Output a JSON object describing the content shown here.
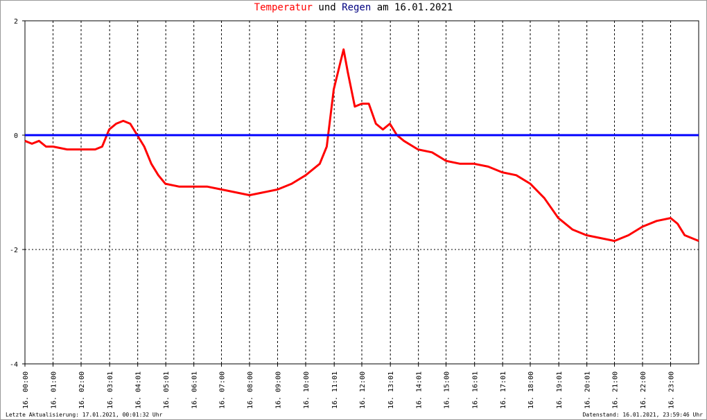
{
  "chart_data": {
    "type": "line",
    "title": [
      {
        "text": "Temperatur",
        "color": "#ff0000"
      },
      {
        "text": "und",
        "color": "#000000"
      },
      {
        "text": "Regen",
        "color": "#000080"
      },
      {
        "text": "am 16.01.2021",
        "color": "#000000"
      }
    ],
    "xlim": [
      0,
      24
    ],
    "xticks": [
      {
        "value": 0,
        "label": "16. 00:00"
      },
      {
        "value": 1,
        "label": "16. 01:00"
      },
      {
        "value": 2,
        "label": "16. 02:00"
      },
      {
        "value": 3.0167,
        "label": "16. 03:01"
      },
      {
        "value": 4.0167,
        "label": "16. 04:01"
      },
      {
        "value": 5.0167,
        "label": "16. 05:01"
      },
      {
        "value": 6.0167,
        "label": "16. 06:01"
      },
      {
        "value": 7,
        "label": "16. 07:00"
      },
      {
        "value": 8,
        "label": "16. 08:00"
      },
      {
        "value": 9,
        "label": "16. 09:00"
      },
      {
        "value": 10,
        "label": "16. 10:00"
      },
      {
        "value": 11.0167,
        "label": "16. 11:01"
      },
      {
        "value": 12,
        "label": "16. 12:00"
      },
      {
        "value": 13.0167,
        "label": "16. 13:01"
      },
      {
        "value": 14.0167,
        "label": "16. 14:01"
      },
      {
        "value": 15,
        "label": "16. 15:00"
      },
      {
        "value": 16.0167,
        "label": "16. 16:01"
      },
      {
        "value": 17.0167,
        "label": "16. 17:01"
      },
      {
        "value": 18,
        "label": "16. 18:00"
      },
      {
        "value": 19.0167,
        "label": "16. 19:01"
      },
      {
        "value": 20.0167,
        "label": "16. 20:01"
      },
      {
        "value": 21,
        "label": "16. 21:00"
      },
      {
        "value": 22,
        "label": "16. 22:00"
      },
      {
        "value": 23,
        "label": "16. 23:00"
      }
    ],
    "ylim": [
      -4,
      2
    ],
    "yticks": [
      -4,
      -2,
      0,
      2
    ],
    "grid": true,
    "series": [
      {
        "color": "#ff0000",
        "x": [
          0,
          0.25,
          0.5,
          0.75,
          1,
          1.5,
          2,
          2.5,
          2.75,
          3,
          3.25,
          3.5,
          3.75,
          4,
          4.25,
          4.5,
          4.75,
          5,
          5.5,
          6,
          6.5,
          7,
          7.5,
          8,
          8.5,
          9,
          9.5,
          10,
          10.5,
          10.75,
          11,
          11.25,
          11.35,
          11.5,
          11.75,
          12,
          12.25,
          12.5,
          12.75,
          13,
          13.25,
          13.5,
          14,
          14.5,
          15,
          15.5,
          16,
          16.5,
          17,
          17.5,
          18,
          18.5,
          19,
          19.5,
          20,
          20.5,
          21,
          21.5,
          22,
          22.5,
          23,
          23.25,
          23.5,
          23.75,
          24
        ],
        "values": [
          -0.1,
          -0.15,
          -0.1,
          -0.2,
          -0.2,
          -0.25,
          -0.25,
          -0.25,
          -0.2,
          0.1,
          0.2,
          0.25,
          0.2,
          0.0,
          -0.2,
          -0.5,
          -0.7,
          -0.85,
          -0.9,
          -0.9,
          -0.9,
          -0.95,
          -1.0,
          -1.05,
          -1.0,
          -0.95,
          -0.85,
          -0.7,
          -0.5,
          -0.2,
          0.8,
          1.3,
          1.5,
          1.1,
          0.5,
          0.55,
          0.55,
          0.2,
          0.1,
          0.2,
          0.0,
          -0.1,
          -0.25,
          -0.3,
          -0.45,
          -0.5,
          -0.5,
          -0.55,
          -0.65,
          -0.7,
          -0.85,
          -1.1,
          -1.45,
          -1.65,
          -1.75,
          -1.8,
          -1.85,
          -1.75,
          -1.6,
          -1.5,
          -1.45,
          -1.55,
          -1.75,
          -1.8,
          -1.85
        ]
      },
      {
        "color": "#0000ff",
        "x": [
          0,
          24
        ],
        "values": [
          0,
          0
        ]
      }
    ]
  },
  "footer": {
    "left": "Letzte Aktualisierung: 17.01.2021, 00:01:32 Uhr",
    "right": "Datenstand: 16.01.2021, 23:59:46 Uhr"
  }
}
